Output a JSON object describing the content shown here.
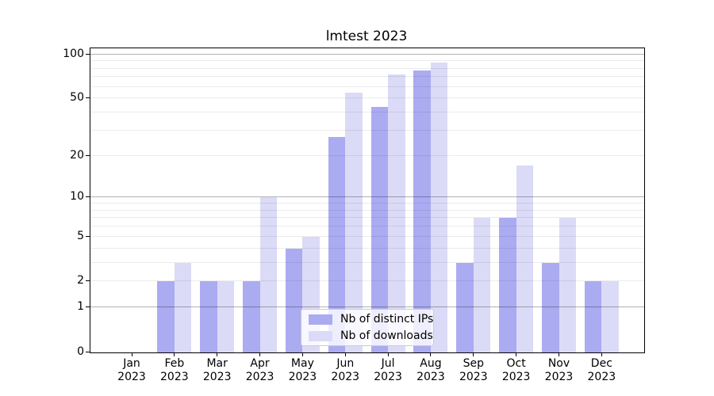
{
  "title": "lmtest 2023",
  "chart_data": {
    "type": "bar",
    "title": "lmtest 2023",
    "year": "2023",
    "categories": [
      "Jan",
      "Feb",
      "Mar",
      "Apr",
      "May",
      "Jun",
      "Jul",
      "Aug",
      "Sep",
      "Oct",
      "Nov",
      "Dec"
    ],
    "series": [
      {
        "name": "Nb of distinct IPs",
        "color": "#ababf2",
        "values": [
          0,
          2,
          2,
          2,
          4,
          27,
          44,
          78,
          3,
          7,
          3,
          2
        ]
      },
      {
        "name": "Nb of downloads",
        "color": "#dbdbf7",
        "values": [
          0,
          3,
          2,
          10,
          5,
          55,
          73,
          88,
          7,
          17,
          7,
          2
        ]
      }
    ],
    "xlabel": "",
    "ylabel": "",
    "y_ticks": [
      0,
      1,
      2,
      5,
      10,
      20,
      50,
      100
    ],
    "y_major_gridlines": [
      1,
      10,
      100
    ],
    "y_minor_gridlines": [
      2,
      3,
      4,
      5,
      6,
      7,
      8,
      9,
      20,
      30,
      40,
      50,
      60,
      70,
      80,
      90
    ],
    "y_scale": "log1p",
    "ylim": [
      0,
      110
    ],
    "grid": true,
    "legend_position": "lower center",
    "bar_group": "side-by-side"
  }
}
